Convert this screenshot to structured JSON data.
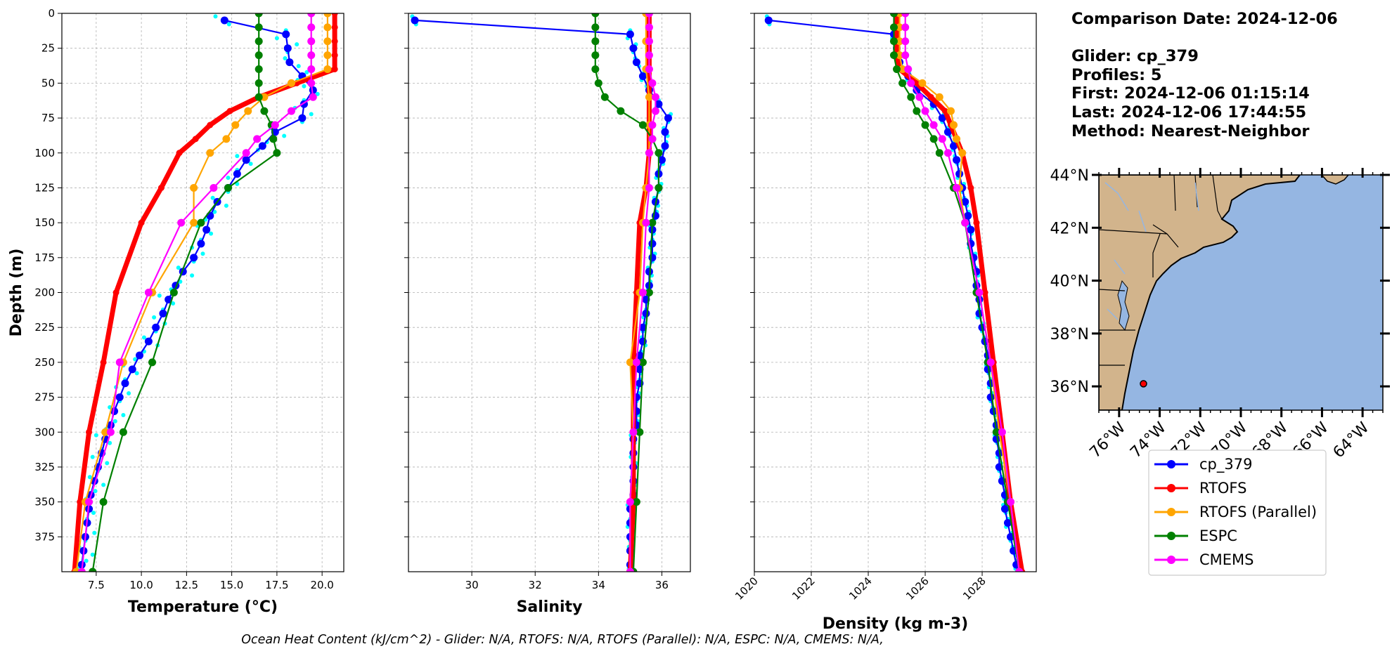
{
  "info": {
    "comparison": "Comparison Date: 2024-12-06",
    "glider": "Glider: cp_379",
    "profiles": "Profiles: 5",
    "first": "First: 2024-12-06 01:15:14",
    "last": "Last: 2024-12-06 17:44:55",
    "method": "Method: Nearest-Neighbor"
  },
  "footer": "Ocean Heat Content (kJ/cm^2) - Glider: N/A,  RTOFS: N/A,  RTOFS (Parallel): N/A,  ESPC: N/A,  CMEMS: N/A,",
  "colors": {
    "cp_379": "#0000ff",
    "RTOFS": "#ff0000",
    "RTOFS (Parallel)": "#ffa500",
    "ESPC": "#008000",
    "CMEMS": "#ff00ff",
    "glider_raw": "#00ffff",
    "land": "#d2b48c",
    "ocean": "#95b6e2",
    "grid": "#b0b0b0"
  },
  "legend": [
    "cp_379",
    "RTOFS",
    "RTOFS (Parallel)",
    "ESPC",
    "CMEMS"
  ],
  "chart_data": [
    {
      "type": "line",
      "xlabel": "Temperature (°C)",
      "ylabel": "Depth (m)",
      "xlim": [
        5.6,
        21.2
      ],
      "ylim": [
        400,
        0
      ],
      "xticks": [
        7.5,
        10.0,
        12.5,
        15.0,
        17.5,
        20.0
      ],
      "yticks": [
        0,
        25,
        50,
        75,
        100,
        125,
        150,
        175,
        200,
        225,
        250,
        275,
        300,
        325,
        350,
        375
      ],
      "grid": true,
      "series": [
        {
          "name": "cp_379",
          "depth": [
            5,
            15,
            25,
            35,
            45,
            55,
            65,
            75,
            85,
            95,
            105,
            115,
            125,
            135,
            145,
            155,
            165,
            175,
            185,
            195,
            205,
            215,
            225,
            235,
            245,
            255,
            265,
            275,
            285,
            295,
            305,
            315,
            325,
            335,
            345,
            355,
            365,
            375,
            385,
            395
          ],
          "x": [
            14.6,
            18.0,
            18.1,
            18.2,
            18.9,
            19.5,
            19.0,
            18.9,
            17.4,
            16.7,
            15.8,
            15.3,
            14.8,
            14.2,
            13.8,
            13.6,
            13.3,
            12.9,
            12.3,
            11.9,
            11.5,
            11.2,
            10.8,
            10.4,
            9.9,
            9.5,
            9.1,
            8.8,
            8.5,
            8.3,
            8.0,
            7.8,
            7.6,
            7.4,
            7.2,
            7.1,
            7.0,
            6.9,
            6.8,
            6.7
          ]
        },
        {
          "name": "RTOFS",
          "depth": [
            0,
            10,
            20,
            30,
            40,
            50,
            60,
            70,
            80,
            90,
            100,
            125,
            150,
            200,
            250,
            300,
            350,
            400
          ],
          "x": [
            20.7,
            20.7,
            20.7,
            20.7,
            20.7,
            18.6,
            16.5,
            14.9,
            13.8,
            13.0,
            12.1,
            11.1,
            10.0,
            8.6,
            7.9,
            7.1,
            6.6,
            6.3
          ]
        },
        {
          "name": "RTOFS (Parallel)",
          "depth": [
            0,
            10,
            20,
            30,
            40,
            50,
            60,
            70,
            80,
            90,
            100,
            125,
            150,
            200,
            250,
            300,
            350,
            400
          ],
          "x": [
            20.3,
            20.3,
            20.3,
            20.3,
            20.3,
            18.3,
            16.8,
            15.9,
            15.2,
            14.7,
            13.8,
            12.9,
            12.9,
            10.6,
            9.0,
            8.0,
            6.9,
            6.4
          ]
        },
        {
          "name": "ESPC",
          "depth": [
            0,
            10,
            20,
            30,
            40,
            50,
            60,
            70,
            80,
            90,
            100,
            125,
            150,
            200,
            250,
            300,
            350,
            400
          ],
          "x": [
            16.5,
            16.5,
            16.5,
            16.5,
            16.5,
            16.5,
            16.5,
            16.8,
            17.2,
            17.3,
            17.5,
            14.8,
            13.3,
            11.8,
            10.6,
            9.0,
            7.9,
            7.3
          ]
        },
        {
          "name": "CMEMS",
          "depth": [
            0,
            10,
            20,
            30,
            40,
            50,
            60,
            70,
            80,
            90,
            100,
            125,
            150,
            200,
            250,
            300,
            350,
            400
          ],
          "x": [
            19.4,
            19.4,
            19.4,
            19.4,
            19.4,
            19.4,
            19.5,
            18.3,
            17.4,
            16.4,
            15.8,
            14.0,
            12.2,
            10.4,
            8.8,
            8.3,
            7.1,
            6.7
          ]
        }
      ]
    },
    {
      "type": "line",
      "xlabel": "Salinity",
      "xlim": [
        28.0,
        36.9
      ],
      "ylim": [
        400,
        0
      ],
      "xticks": [
        30,
        32,
        34,
        36
      ],
      "grid": true,
      "series": [
        {
          "name": "cp_379",
          "depth": [
            5,
            15,
            25,
            35,
            45,
            55,
            65,
            75,
            85,
            95,
            105,
            115,
            125,
            135,
            145,
            155,
            165,
            175,
            185,
            195,
            205,
            215,
            225,
            235,
            245,
            255,
            265,
            275,
            285,
            295,
            305,
            315,
            325,
            335,
            345,
            355,
            365,
            375,
            385,
            395
          ],
          "x": [
            28.2,
            35.0,
            35.1,
            35.2,
            35.4,
            35.6,
            35.9,
            36.2,
            36.1,
            36.1,
            36.0,
            35.9,
            35.9,
            35.8,
            35.8,
            35.7,
            35.7,
            35.7,
            35.6,
            35.6,
            35.5,
            35.5,
            35.4,
            35.4,
            35.3,
            35.3,
            35.3,
            35.2,
            35.2,
            35.2,
            35.1,
            35.1,
            35.1,
            35.1,
            35.1,
            35.0,
            35.0,
            35.0,
            35.0,
            35.0
          ]
        },
        {
          "name": "RTOFS",
          "depth": [
            0,
            20,
            40,
            60,
            80,
            100,
            125,
            150,
            200,
            250,
            300,
            350,
            400
          ],
          "x": [
            35.6,
            35.6,
            35.6,
            35.6,
            35.6,
            35.6,
            35.5,
            35.3,
            35.2,
            35.1,
            35.1,
            35.1,
            35.0
          ]
        },
        {
          "name": "RTOFS (Parallel)",
          "depth": [
            0,
            20,
            40,
            60,
            80,
            100,
            125,
            150,
            200,
            250,
            300,
            350,
            400
          ],
          "x": [
            35.5,
            35.5,
            35.5,
            35.6,
            35.6,
            35.6,
            35.5,
            35.4,
            35.3,
            35.0,
            35.1,
            35.0,
            35.0
          ]
        },
        {
          "name": "ESPC",
          "depth": [
            0,
            10,
            20,
            30,
            40,
            50,
            60,
            70,
            80,
            90,
            100,
            125,
            150,
            200,
            250,
            300,
            350,
            400
          ],
          "x": [
            33.9,
            33.9,
            33.9,
            33.9,
            33.9,
            34.0,
            34.2,
            34.7,
            35.4,
            35.7,
            35.9,
            35.9,
            35.7,
            35.6,
            35.4,
            35.3,
            35.2,
            35.1
          ]
        },
        {
          "name": "CMEMS",
          "depth": [
            0,
            10,
            20,
            30,
            40,
            50,
            60,
            70,
            80,
            90,
            100,
            125,
            150,
            200,
            250,
            300,
            350,
            400
          ],
          "x": [
            35.6,
            35.6,
            35.6,
            35.6,
            35.6,
            35.7,
            35.8,
            35.8,
            35.7,
            35.7,
            35.6,
            35.6,
            35.5,
            35.4,
            35.2,
            35.1,
            35.0,
            35.0
          ]
        }
      ]
    },
    {
      "type": "line",
      "xlabel": "Density (kg m-3)",
      "xlim": [
        1020.0,
        1029.9
      ],
      "ylim": [
        400,
        0
      ],
      "xticks": [
        1020,
        1022,
        1024,
        1026,
        1028
      ],
      "grid": true,
      "series": [
        {
          "name": "cp_379",
          "depth": [
            5,
            15,
            25,
            35,
            45,
            55,
            65,
            75,
            85,
            95,
            105,
            115,
            125,
            135,
            145,
            155,
            165,
            175,
            185,
            195,
            205,
            215,
            225,
            235,
            245,
            255,
            265,
            275,
            285,
            295,
            305,
            315,
            325,
            335,
            345,
            355,
            365,
            375,
            385,
            395
          ],
          "x": [
            1020.5,
            1024.9,
            1025.0,
            1025.1,
            1025.4,
            1025.7,
            1026.3,
            1026.6,
            1026.8,
            1027.0,
            1027.1,
            1027.2,
            1027.3,
            1027.4,
            1027.5,
            1027.6,
            1027.6,
            1027.7,
            1027.8,
            1027.8,
            1027.9,
            1027.9,
            1028.0,
            1028.1,
            1028.2,
            1028.2,
            1028.3,
            1028.3,
            1028.4,
            1028.5,
            1028.5,
            1028.6,
            1028.6,
            1028.7,
            1028.8,
            1028.8,
            1028.9,
            1029.0,
            1029.1,
            1029.2
          ]
        },
        {
          "name": "RTOFS",
          "depth": [
            0,
            10,
            20,
            30,
            40,
            50,
            60,
            70,
            80,
            90,
            100,
            125,
            150,
            200,
            250,
            300,
            350,
            400
          ],
          "x": [
            1025.0,
            1025.0,
            1025.0,
            1025.0,
            1025.1,
            1025.7,
            1026.2,
            1026.7,
            1026.9,
            1027.1,
            1027.3,
            1027.6,
            1027.8,
            1028.1,
            1028.4,
            1028.7,
            1029.0,
            1029.4
          ]
        },
        {
          "name": "RTOFS (Parallel)",
          "depth": [
            0,
            10,
            20,
            30,
            40,
            50,
            60,
            70,
            80,
            90,
            100,
            125,
            150,
            200,
            250,
            300,
            350,
            400
          ],
          "x": [
            1025.1,
            1025.1,
            1025.1,
            1025.1,
            1025.2,
            1025.9,
            1026.5,
            1026.9,
            1027.0,
            1027.1,
            1027.3,
            1027.2,
            1027.4,
            1027.9,
            1028.3,
            1028.6,
            1029.0,
            1029.3
          ]
        },
        {
          "name": "ESPC",
          "depth": [
            0,
            10,
            20,
            30,
            40,
            50,
            60,
            70,
            80,
            90,
            100,
            125,
            150,
            200,
            250,
            300,
            350,
            400
          ],
          "x": [
            1024.9,
            1024.9,
            1024.9,
            1024.9,
            1025.0,
            1025.2,
            1025.5,
            1025.7,
            1026.0,
            1026.3,
            1026.5,
            1027.0,
            1027.4,
            1027.8,
            1028.2,
            1028.5,
            1028.9,
            1029.3
          ]
        },
        {
          "name": "CMEMS",
          "depth": [
            0,
            10,
            20,
            30,
            40,
            50,
            60,
            70,
            80,
            90,
            100,
            125,
            150,
            200,
            250,
            300,
            350,
            400
          ],
          "x": [
            1025.3,
            1025.3,
            1025.3,
            1025.3,
            1025.4,
            1025.5,
            1025.8,
            1026.0,
            1026.3,
            1026.6,
            1026.8,
            1027.1,
            1027.4,
            1027.9,
            1028.3,
            1028.7,
            1029.0,
            1029.3
          ]
        }
      ]
    }
  ],
  "map": {
    "lat_ticks": [
      "44°N",
      "42°N",
      "40°N",
      "38°N",
      "36°N"
    ],
    "lat_values": [
      44,
      42,
      40,
      38,
      36
    ],
    "lon_ticks": [
      "76°W",
      "74°W",
      "72°W",
      "70°W",
      "68°W",
      "66°W",
      "64°W"
    ],
    "lon_values": [
      -76,
      -74,
      -72,
      -70,
      -68,
      -66,
      -64
    ],
    "extent": {
      "lon": [
        -77.0,
        -63.0
      ],
      "lat": [
        35.1,
        44.0
      ]
    },
    "glider_position": {
      "lon": -74.8,
      "lat": 36.1
    }
  }
}
